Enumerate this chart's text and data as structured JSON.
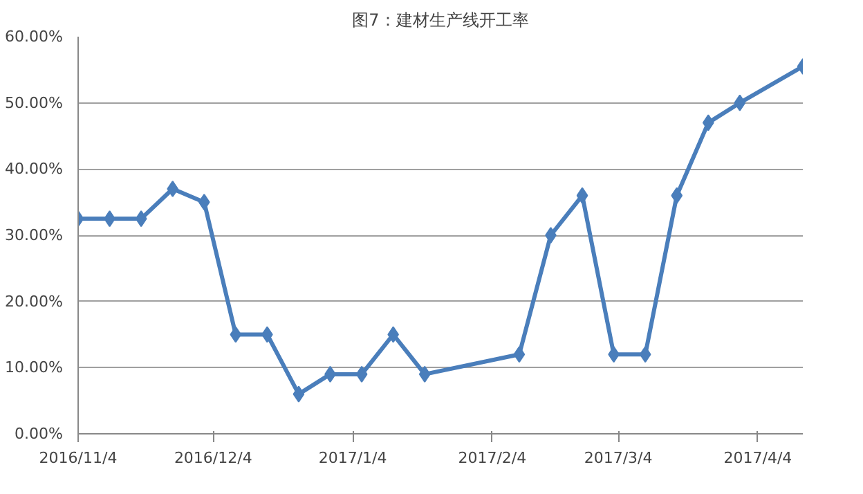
{
  "chart_data": {
    "type": "line",
    "title": "图7：建材生产线开工率",
    "x": [
      "2016-11-04",
      "2016-11-11",
      "2016-11-18",
      "2016-11-25",
      "2016-12-02",
      "2016-12-09",
      "2016-12-16",
      "2016-12-23",
      "2016-12-30",
      "2017-01-06",
      "2017-01-13",
      "2017-01-20",
      "2017-02-10",
      "2017-02-17",
      "2017-02-24",
      "2017-03-03",
      "2017-03-10",
      "2017-03-17",
      "2017-03-24",
      "2017-03-31",
      "2017-04-14"
    ],
    "series": [
      {
        "color": "#4a7ebb",
        "values": [
          32.5,
          32.5,
          32.5,
          37,
          35,
          15,
          15,
          6,
          9,
          9,
          15,
          9,
          12,
          30,
          36,
          12,
          12,
          36,
          47,
          50,
          55.5
        ]
      }
    ],
    "xlim": [
      "2016-11-04",
      "2017-04-14"
    ],
    "xticks": [
      {
        "value": "2016-11-04",
        "label": "2016/11/4"
      },
      {
        "value": "2016-12-04",
        "label": "2016/12/4"
      },
      {
        "value": "2017-01-04",
        "label": "2017/1/4"
      },
      {
        "value": "2017-02-04",
        "label": "2017/2/4"
      },
      {
        "value": "2017-03-04",
        "label": "2017/3/4"
      },
      {
        "value": "2017-04-04",
        "label": "2017/4/4"
      }
    ],
    "ylim": [
      0,
      60
    ],
    "yticks": [
      {
        "value": 0,
        "label": "0.00%"
      },
      {
        "value": 10,
        "label": "10.00%"
      },
      {
        "value": 20,
        "label": "20.00%"
      },
      {
        "value": 30,
        "label": "30.00%"
      },
      {
        "value": 40,
        "label": "40.00%"
      },
      {
        "value": 50,
        "label": "50.00%"
      },
      {
        "value": 60,
        "label": "60.00%"
      }
    ],
    "grid": "y",
    "marker": "diamond",
    "line_style": "solid"
  }
}
